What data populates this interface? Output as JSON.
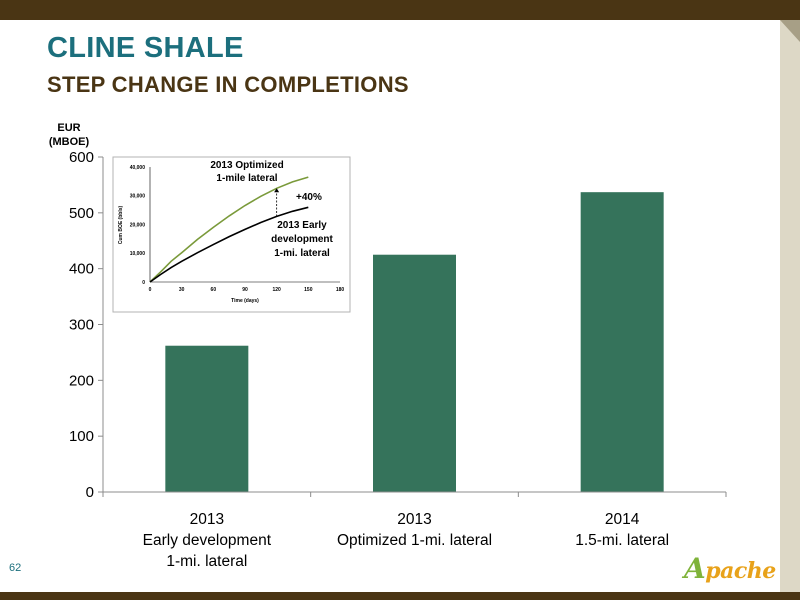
{
  "slide": {
    "title": "CLINE SHALE",
    "subtitle": "STEP CHANGE IN COMPLETIONS",
    "page_number": "62",
    "logo_text": "Apache"
  },
  "colors": {
    "bar": "#35735b",
    "title": "#1c6f7d",
    "bars_frame": "#4a3514",
    "optimized_curve": "#7a9a3a",
    "early_curve": "#000000"
  },
  "chart_data": [
    {
      "type": "bar",
      "ylabel": [
        "EUR",
        "(MBOE)"
      ],
      "ylim": [
        0,
        600
      ],
      "yticks": [
        0,
        100,
        200,
        300,
        400,
        500,
        600
      ],
      "categories": [
        [
          "2013",
          "Early development",
          "1-mi. lateral"
        ],
        [
          "2013",
          "Optimized 1-mi. lateral"
        ],
        [
          "2014",
          "1.5-mi. lateral"
        ]
      ],
      "values": [
        262,
        425,
        537
      ],
      "grid": false
    },
    {
      "type": "line",
      "xlabel": "Time (days)",
      "ylabel": "Cum BOE (bbls)",
      "xlim": [
        0,
        180
      ],
      "ylim": [
        0,
        40000
      ],
      "xticks": [
        0,
        30,
        60,
        90,
        120,
        150,
        180
      ],
      "yticks": [
        0,
        10000,
        20000,
        30000,
        40000
      ],
      "ytick_labels": [
        "0",
        "10,000",
        "20,000",
        "30,000",
        "40,000"
      ],
      "series": [
        {
          "name": "2013 Optimized 1-mile lateral",
          "name_lines": [
            "2013 Optimized",
            "1-mile lateral"
          ],
          "x": [
            0,
            10,
            20,
            30,
            45,
            60,
            75,
            90,
            105,
            120,
            135,
            150
          ],
          "y": [
            0,
            3500,
            7200,
            10200,
            14800,
            19000,
            23000,
            26600,
            29800,
            32600,
            34800,
            36500
          ]
        },
        {
          "name": "2013 Early development 1-mi. lateral",
          "name_lines": [
            "2013 Early",
            "development",
            "1-mi. lateral"
          ],
          "x": [
            0,
            10,
            20,
            30,
            45,
            60,
            75,
            90,
            105,
            120,
            135,
            150
          ],
          "y": [
            0,
            2600,
            5000,
            7200,
            10200,
            13000,
            15800,
            18300,
            20700,
            22800,
            24600,
            26000
          ]
        }
      ],
      "annotation": "+40%"
    }
  ]
}
